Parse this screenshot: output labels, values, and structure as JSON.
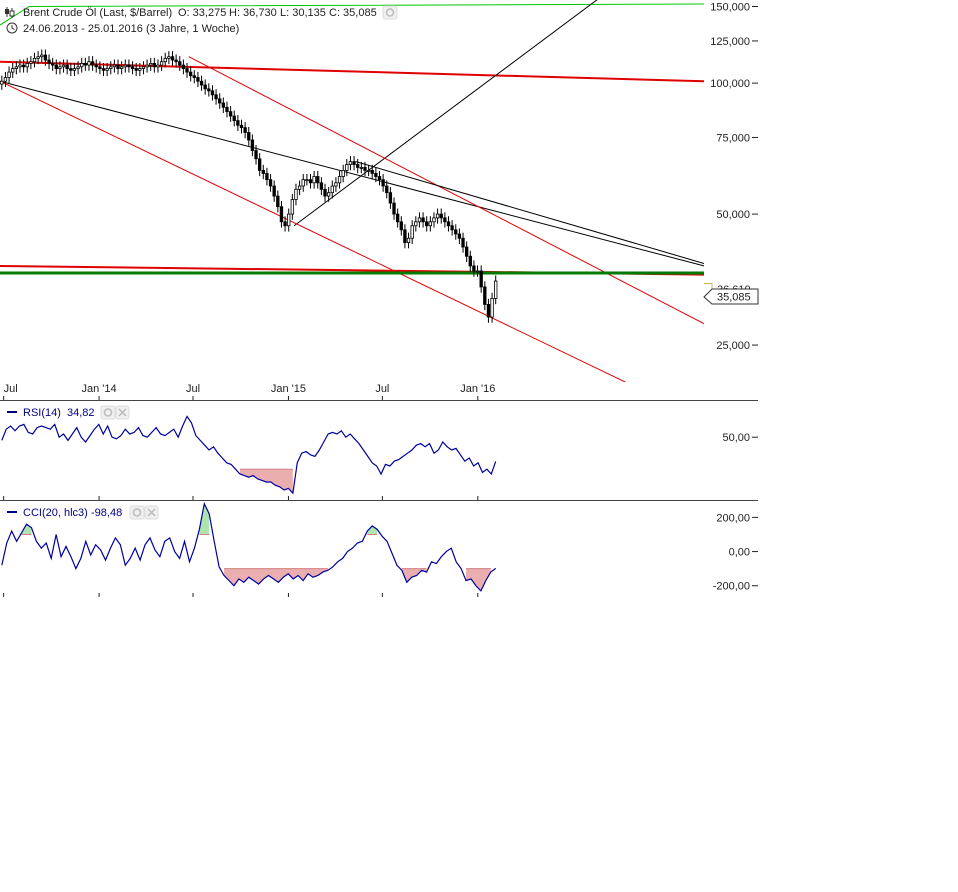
{
  "header": {
    "instrument": "Brent Crude Öl (Last, $/Barrel)",
    "open": "O: 33,275",
    "high": "H: 36,730",
    "low": "L: 30,135",
    "close": "C: 35,085",
    "range": "24.06.2013 - 25.01.2016 (3 Jahre, 1 Woche)"
  },
  "icons": {
    "chart_type": "candlestick-icon",
    "clock": "clock-icon",
    "settings": "gear-icon",
    "close": "close-icon"
  },
  "colors": {
    "bullish_line": "#00c800",
    "resistance": "#e00000",
    "support": "#007a00",
    "trend": "#000000",
    "indicator": "#0000a0",
    "oversold_fill": "#e8a0a0",
    "overbought_fill": "#a0e0a0"
  },
  "price_badges": {
    "upper": "36,610",
    "current": "35,085"
  },
  "chart_data": [
    {
      "type": "candlestick",
      "title": "Brent Crude Öl (Last, $/Barrel)",
      "scale": "log",
      "y_ticks": [
        "150,000",
        "125,000",
        "100,000",
        "75,000",
        "50,000",
        "25,000"
      ],
      "y_tick_values": [
        150,
        125,
        100,
        75,
        50,
        25
      ],
      "ylim": [
        21,
        152
      ],
      "x_ticks": [
        "Jul",
        "Jan '14",
        "Jul",
        "Jan '15",
        "Jul",
        "Jan '16"
      ],
      "x_tick_dates": [
        "2013-07-01",
        "2014-01-01",
        "2014-07-01",
        "2015-01-01",
        "2015-07-01",
        "2016-01-01"
      ],
      "xlim": [
        "2013-06-24",
        "2017-03-12"
      ],
      "series": [
        {
          "name": "Brent Crude Öl",
          "weekly_close": [
            101,
            103,
            106,
            108,
            109,
            110,
            109,
            111,
            112,
            114,
            115,
            116,
            113,
            111,
            110,
            108,
            109,
            110,
            108,
            107,
            108,
            109,
            111,
            110,
            112,
            110,
            109,
            108,
            107,
            108,
            109,
            110,
            108,
            109,
            110,
            109,
            108,
            107,
            108,
            109,
            110,
            111,
            109,
            110,
            112,
            114,
            115,
            113,
            112,
            110,
            108,
            106,
            104,
            103,
            101,
            99,
            97,
            96,
            94,
            92,
            90,
            88,
            86,
            84,
            82,
            80,
            79,
            77,
            74,
            70,
            67,
            63,
            62,
            60,
            58,
            55,
            52,
            48,
            47,
            50,
            54,
            57,
            58,
            60,
            60,
            59,
            61,
            59,
            57,
            55,
            56,
            58,
            59,
            61,
            63,
            65,
            66,
            65,
            64,
            64,
            63,
            63,
            62,
            61,
            60,
            58,
            56,
            53,
            50,
            48,
            46,
            43,
            44,
            47,
            48,
            49,
            48,
            47,
            48,
            49,
            50,
            49,
            48,
            47,
            46,
            45,
            44,
            42,
            40,
            38,
            37,
            37,
            34,
            31,
            29,
            32,
            35.085
          ]
        }
      ],
      "trendlines": [
        {
          "name": "green-upper",
          "points": [
            [
              "2013-06-24",
              136
            ],
            [
              "2013-08-19",
              150
            ],
            [
              "2017-03-12",
              152
            ]
          ]
        },
        {
          "name": "red-resistance-upper",
          "points": [
            [
              "2013-06-24",
              112
            ],
            [
              "2017-03-12",
              101
            ]
          ]
        },
        {
          "name": "black-down-long",
          "points": [
            [
              "2013-06-24",
              101
            ],
            [
              "2017-03-12",
              38
            ]
          ]
        },
        {
          "name": "black-up",
          "points": [
            [
              "2015-01-12",
              47
            ],
            [
              "2016-09-01",
              160
            ]
          ]
        },
        {
          "name": "red-channel-upper",
          "points": [
            [
              "2014-06-23",
              115
            ],
            [
              "2017-03-12",
              28
            ]
          ]
        },
        {
          "name": "red-channel-lower",
          "points": [
            [
              "2013-06-24",
              101
            ],
            [
              "2016-11-01",
              20
            ]
          ]
        },
        {
          "name": "black-down-short",
          "points": [
            [
              "2015-05-11",
              66
            ],
            [
              "2017-03-12",
              38.5
            ]
          ]
        },
        {
          "name": "red-support",
          "points": [
            [
              "2013-06-24",
              38
            ],
            [
              "2017-03-12",
              36.3
            ]
          ]
        },
        {
          "name": "green-support",
          "points": [
            [
              "2013-06-24",
              36.6
            ],
            [
              "2017-03-12",
              36.6
            ]
          ]
        }
      ]
    },
    {
      "type": "line",
      "title": "RSI(14)",
      "label": "RSI(14)",
      "value": "34,82",
      "y_ticks": [
        "50,00"
      ],
      "y_tick_values": [
        50
      ],
      "ylim": [
        12,
        72
      ],
      "threshold": 30,
      "series": [
        {
          "name": "RSI(14)",
          "values": [
            48,
            55,
            57,
            54,
            57,
            58,
            53,
            52,
            56,
            57,
            56,
            55,
            58,
            50,
            52,
            48,
            52,
            56,
            50,
            47,
            51,
            55,
            58,
            52,
            57,
            50,
            49,
            51,
            55,
            52,
            53,
            56,
            51,
            50,
            53,
            56,
            52,
            51,
            53,
            55,
            50,
            57,
            63,
            59,
            51,
            48,
            45,
            42,
            44,
            40,
            37,
            34,
            33,
            30,
            27,
            26,
            25,
            26,
            24,
            23,
            22,
            22,
            20,
            19,
            17,
            18,
            15,
            34,
            40,
            41,
            39,
            38,
            42,
            47,
            52,
            53,
            52,
            54,
            50,
            52,
            49,
            46,
            42,
            38,
            34,
            32,
            27,
            33,
            32,
            35,
            36,
            38,
            40,
            42,
            45,
            46,
            44,
            46,
            40,
            42,
            47,
            44,
            42,
            43,
            39,
            35,
            37,
            32,
            34,
            28,
            30,
            27,
            34.82
          ]
        }
      ]
    },
    {
      "type": "line",
      "title": "CCI(20, hlc3)",
      "label": "CCI(20, hlc3)",
      "value": "-98,48",
      "y_ticks": [
        "200,00",
        "0,00",
        "-200,00"
      ],
      "y_tick_values": [
        200,
        0,
        -200
      ],
      "ylim": [
        -260,
        290
      ],
      "threshold_upper": 100,
      "threshold_lower": -100,
      "series": [
        {
          "name": "CCI(20, hlc3)",
          "values": [
            -80,
            50,
            120,
            60,
            110,
            160,
            140,
            60,
            20,
            50,
            -40,
            100,
            -30,
            30,
            -30,
            -100,
            -40,
            60,
            -20,
            40,
            10,
            -50,
            20,
            80,
            40,
            -80,
            -40,
            20,
            -50,
            40,
            80,
            10,
            -30,
            60,
            80,
            0,
            -40,
            60,
            -60,
            20,
            130,
            280,
            220,
            60,
            -90,
            -140,
            -170,
            -200,
            -160,
            -180,
            -150,
            -170,
            -190,
            -160,
            -140,
            -160,
            -180,
            -150,
            -130,
            -160,
            -140,
            -170,
            -130,
            -150,
            -140,
            -120,
            -110,
            -90,
            -60,
            -40,
            0,
            20,
            50,
            60,
            120,
            150,
            130,
            90,
            60,
            -10,
            -80,
            -110,
            -180,
            -150,
            -140,
            -110,
            -120,
            -60,
            -70,
            -30,
            0,
            20,
            -60,
            -100,
            -170,
            -160,
            -200,
            -230,
            -170,
            -120,
            -98.48
          ]
        }
      ]
    }
  ]
}
